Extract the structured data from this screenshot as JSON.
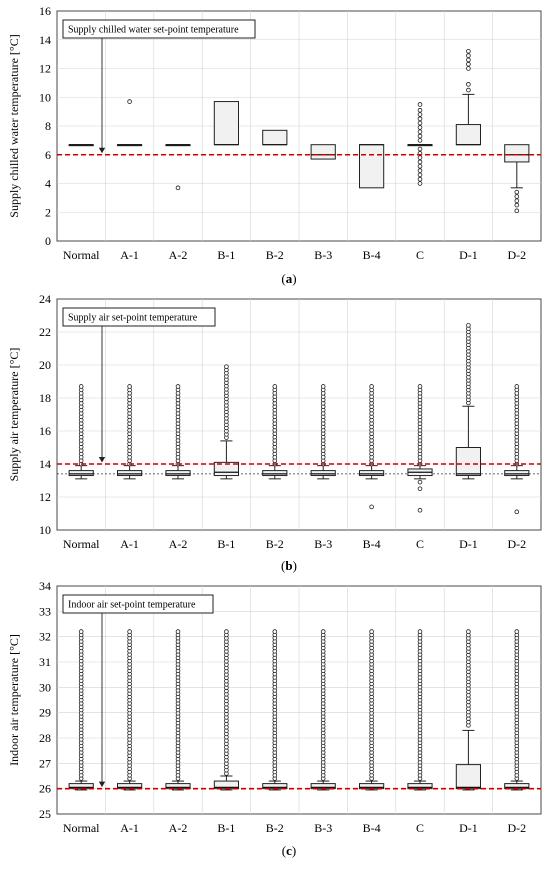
{
  "chart_data": [
    {
      "type": "box",
      "caption": "(a)",
      "ylabel": "Supply chilled water temperature [°C]",
      "ylim": [
        0,
        16
      ],
      "yticks": [
        0,
        2,
        4,
        6,
        8,
        10,
        12,
        14,
        16
      ],
      "categories": [
        "Normal",
        "A-1",
        "A-2",
        "B-1",
        "B-2",
        "B-3",
        "B-4",
        "C",
        "D-1",
        "D-2"
      ],
      "annotation": "Supply chilled water set-point temperature",
      "setpoint": 6.0,
      "grid": true,
      "boxes": [
        {
          "q1": 6.7,
          "median": 6.7,
          "q3": 6.7,
          "whisker_low": 6.7,
          "whisker_high": 6.7,
          "outliers": []
        },
        {
          "q1": 6.7,
          "median": 6.7,
          "q3": 6.7,
          "whisker_low": 6.7,
          "whisker_high": 6.7,
          "outliers": [
            9.7
          ]
        },
        {
          "q1": 6.7,
          "median": 6.7,
          "q3": 6.7,
          "whisker_low": 6.7,
          "whisker_high": 6.7,
          "outliers": [
            3.7
          ]
        },
        {
          "q1": 6.7,
          "median": 6.7,
          "q3": 9.7,
          "whisker_low": 6.7,
          "whisker_high": 9.7,
          "outliers": []
        },
        {
          "q1": 6.7,
          "median": 6.7,
          "q3": 7.7,
          "whisker_low": 6.7,
          "whisker_high": 7.7,
          "outliers": []
        },
        {
          "q1": 5.7,
          "median": 6.0,
          "q3": 6.7,
          "whisker_low": 5.7,
          "whisker_high": 6.7,
          "outliers": []
        },
        {
          "q1": 3.7,
          "median": 6.7,
          "q3": 6.7,
          "whisker_low": 3.7,
          "whisker_high": 6.7,
          "outliers": []
        },
        {
          "q1": 6.7,
          "median": 6.7,
          "q3": 6.7,
          "whisker_low": 6.7,
          "whisker_high": 6.7,
          "outliers": [
            4.0,
            4.3,
            4.6,
            4.9,
            5.2,
            5.5,
            5.8,
            6.1,
            6.4,
            7.0,
            7.3,
            7.6,
            7.9,
            8.2,
            8.5,
            8.8,
            9.1,
            9.5
          ]
        },
        {
          "q1": 6.7,
          "median": 6.7,
          "q3": 8.1,
          "whisker_low": 6.7,
          "whisker_high": 10.2,
          "outliers": [
            10.5,
            10.9,
            12.0,
            12.3,
            12.6,
            12.9,
            13.2
          ]
        },
        {
          "q1": 5.5,
          "median": 6.0,
          "q3": 6.7,
          "whisker_low": 3.7,
          "whisker_high": 6.7,
          "outliers": [
            2.1,
            2.5,
            2.8,
            3.1,
            3.4
          ]
        }
      ]
    },
    {
      "type": "box",
      "caption": "(b)",
      "ylabel": "Supply air temperature [°C]",
      "ylim": [
        10,
        24
      ],
      "yticks": [
        10,
        12,
        14,
        16,
        18,
        20,
        22,
        24
      ],
      "categories": [
        "Normal",
        "A-1",
        "A-2",
        "B-1",
        "B-2",
        "B-3",
        "B-4",
        "C",
        "D-1",
        "D-2"
      ],
      "annotation": "Supply air set-point temperature",
      "setpoint": 14.0,
      "reference": 13.4,
      "grid": true,
      "boxes": [
        {
          "q1": 13.3,
          "median": 13.4,
          "q3": 13.6,
          "whisker_low": 13.1,
          "whisker_high": 13.9,
          "outlier_range": [
            14.0,
            18.7
          ],
          "outliers": []
        },
        {
          "q1": 13.3,
          "median": 13.4,
          "q3": 13.6,
          "whisker_low": 13.1,
          "whisker_high": 13.9,
          "outlier_range": [
            14.0,
            18.7
          ],
          "outliers": []
        },
        {
          "q1": 13.3,
          "median": 13.4,
          "q3": 13.6,
          "whisker_low": 13.1,
          "whisker_high": 13.9,
          "outlier_range": [
            14.0,
            18.7
          ],
          "outliers": []
        },
        {
          "q1": 13.3,
          "median": 13.5,
          "q3": 14.1,
          "whisker_low": 13.1,
          "whisker_high": 15.4,
          "outlier_range": [
            15.6,
            19.9
          ],
          "outliers": []
        },
        {
          "q1": 13.3,
          "median": 13.4,
          "q3": 13.6,
          "whisker_low": 13.1,
          "whisker_high": 13.9,
          "outlier_range": [
            14.0,
            18.7
          ],
          "outliers": []
        },
        {
          "q1": 13.3,
          "median": 13.4,
          "q3": 13.6,
          "whisker_low": 13.1,
          "whisker_high": 13.9,
          "outlier_range": [
            14.0,
            18.7
          ],
          "outliers": []
        },
        {
          "q1": 13.3,
          "median": 13.4,
          "q3": 13.6,
          "whisker_low": 13.1,
          "whisker_high": 13.9,
          "outlier_range": [
            14.0,
            18.7
          ],
          "outliers": [
            11.4
          ]
        },
        {
          "q1": 13.3,
          "median": 13.5,
          "q3": 13.7,
          "whisker_low": 13.1,
          "whisker_high": 13.9,
          "outlier_range": [
            14.0,
            18.7
          ],
          "outliers": [
            11.2,
            12.5,
            12.9
          ]
        },
        {
          "q1": 13.3,
          "median": 13.4,
          "q3": 15.0,
          "whisker_low": 13.1,
          "whisker_high": 17.5,
          "outlier_range": [
            17.7,
            22.4
          ],
          "outliers": []
        },
        {
          "q1": 13.3,
          "median": 13.4,
          "q3": 13.6,
          "whisker_low": 13.1,
          "whisker_high": 13.9,
          "outlier_range": [
            14.0,
            18.7
          ],
          "outliers": [
            11.1
          ]
        }
      ]
    },
    {
      "type": "box",
      "caption": "(c)",
      "ylabel": "Indoor air temperature [°C]",
      "ylim": [
        25,
        34
      ],
      "yticks": [
        25,
        26,
        27,
        28,
        29,
        30,
        31,
        32,
        33,
        34
      ],
      "categories": [
        "Normal",
        "A-1",
        "A-2",
        "B-1",
        "B-2",
        "B-3",
        "B-4",
        "C",
        "D-1",
        "D-2"
      ],
      "annotation": "Indoor air set-point temperature",
      "setpoint": 26.0,
      "grid": true,
      "boxes": [
        {
          "q1": 26.0,
          "median": 26.05,
          "q3": 26.2,
          "whisker_low": 25.95,
          "whisker_high": 26.3,
          "outlier_range": [
            26.4,
            32.2
          ],
          "outliers": []
        },
        {
          "q1": 26.0,
          "median": 26.05,
          "q3": 26.2,
          "whisker_low": 25.95,
          "whisker_high": 26.3,
          "outlier_range": [
            26.4,
            32.2
          ],
          "outliers": []
        },
        {
          "q1": 26.0,
          "median": 26.05,
          "q3": 26.2,
          "whisker_low": 25.95,
          "whisker_high": 26.3,
          "outlier_range": [
            26.4,
            32.2
          ],
          "outliers": []
        },
        {
          "q1": 26.0,
          "median": 26.05,
          "q3": 26.3,
          "whisker_low": 25.95,
          "whisker_high": 26.5,
          "outlier_range": [
            26.6,
            32.2
          ],
          "outliers": []
        },
        {
          "q1": 26.0,
          "median": 26.05,
          "q3": 26.2,
          "whisker_low": 25.95,
          "whisker_high": 26.3,
          "outlier_range": [
            26.4,
            32.2
          ],
          "outliers": []
        },
        {
          "q1": 26.0,
          "median": 26.05,
          "q3": 26.2,
          "whisker_low": 25.95,
          "whisker_high": 26.3,
          "outlier_range": [
            26.4,
            32.2
          ],
          "outliers": []
        },
        {
          "q1": 26.0,
          "median": 26.05,
          "q3": 26.2,
          "whisker_low": 25.95,
          "whisker_high": 26.3,
          "outlier_range": [
            26.4,
            32.2
          ],
          "outliers": []
        },
        {
          "q1": 26.0,
          "median": 26.05,
          "q3": 26.2,
          "whisker_low": 25.95,
          "whisker_high": 26.3,
          "outlier_range": [
            26.4,
            32.2
          ],
          "outliers": []
        },
        {
          "q1": 26.0,
          "median": 26.05,
          "q3": 26.95,
          "whisker_low": 25.95,
          "whisker_high": 28.3,
          "outlier_range": [
            28.5,
            32.2
          ],
          "outliers": []
        },
        {
          "q1": 26.0,
          "median": 26.05,
          "q3": 26.2,
          "whisker_low": 25.95,
          "whisker_high": 26.3,
          "outlier_range": [
            26.4,
            32.2
          ],
          "outliers": []
        }
      ]
    }
  ]
}
